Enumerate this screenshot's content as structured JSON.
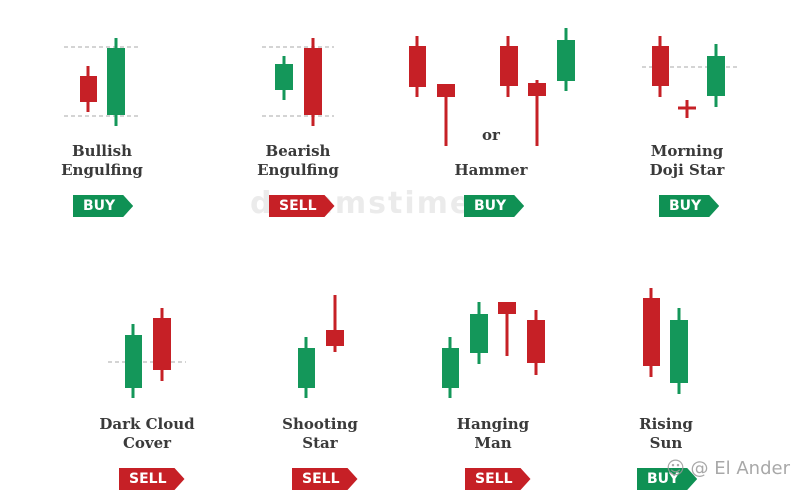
{
  "colors": {
    "buy": "#0f9154",
    "sell": "#c62026",
    "green": "#14975a",
    "red": "#c62026",
    "dash": "#aaaaaa"
  },
  "patterns": [
    {
      "line1": "Bullish",
      "line2": "Engulfing",
      "signal": "BUY"
    },
    {
      "line1": "Bearish",
      "line2": "Engulfing",
      "signal": "SELL"
    },
    {
      "line1": "Hammer",
      "line2": "",
      "signal": "BUY"
    },
    {
      "line1": "Morning",
      "line2": "Doji Star",
      "signal": "BUY"
    },
    {
      "line1": "Dark Cloud",
      "line2": "Cover",
      "signal": "SELL"
    },
    {
      "line1": "Shooting",
      "line2": "Star",
      "signal": "SELL"
    },
    {
      "line1": "Hanging",
      "line2": "Man",
      "signal": "SELL"
    },
    {
      "line1": "Rising",
      "line2": "Sun",
      "signal": "BUY"
    }
  ],
  "or_text": "or",
  "watermark_center": "dreamstime",
  "watermark": "☺ @ El Ander"
}
